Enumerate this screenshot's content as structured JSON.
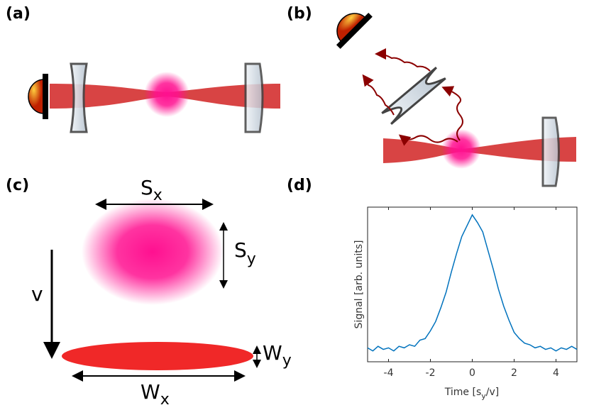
{
  "panels": {
    "a": "(a)",
    "b": "(b)",
    "c": "(c)",
    "d": "(d)"
  },
  "labels": {
    "sx": {
      "main": "S",
      "sub": "x"
    },
    "sy": {
      "main": "S",
      "sub": "y"
    },
    "v": "v",
    "wx": {
      "main": "W",
      "sub": "x"
    },
    "wy": {
      "main": "W",
      "sub": "y"
    }
  },
  "chart_data": {
    "type": "line",
    "ylabel": "Signal [arb. units]",
    "xlabel": {
      "text": "Time [s",
      "sub": "y",
      "tail": "/v]"
    },
    "color": "#0072bd",
    "x": [
      -5,
      -4.75,
      -4.5,
      -4.25,
      -4,
      -3.75,
      -3.5,
      -3.25,
      -3,
      -2.75,
      -2.5,
      -2.25,
      -2,
      -1.75,
      -1.5,
      -1.25,
      -1,
      -0.75,
      -0.5,
      -0.25,
      0,
      0.25,
      0.5,
      0.75,
      1,
      1.25,
      1.5,
      1.75,
      2,
      2.25,
      2.5,
      2.75,
      3,
      3.25,
      3.5,
      3.75,
      4,
      4.25,
      4.5,
      4.75,
      5
    ],
    "values": [
      0.09,
      0.07,
      0.1,
      0.08,
      0.09,
      0.07,
      0.1,
      0.09,
      0.11,
      0.1,
      0.14,
      0.15,
      0.2,
      0.26,
      0.35,
      0.45,
      0.58,
      0.7,
      0.81,
      0.88,
      0.95,
      0.9,
      0.84,
      0.72,
      0.6,
      0.47,
      0.36,
      0.27,
      0.19,
      0.15,
      0.12,
      0.11,
      0.09,
      0.1,
      0.08,
      0.09,
      0.07,
      0.09,
      0.08,
      0.1,
      0.08
    ],
    "xlim": [
      -5,
      5
    ],
    "ylim": [
      0,
      1
    ],
    "xticks": [
      -4,
      -2,
      0,
      2,
      4
    ]
  }
}
